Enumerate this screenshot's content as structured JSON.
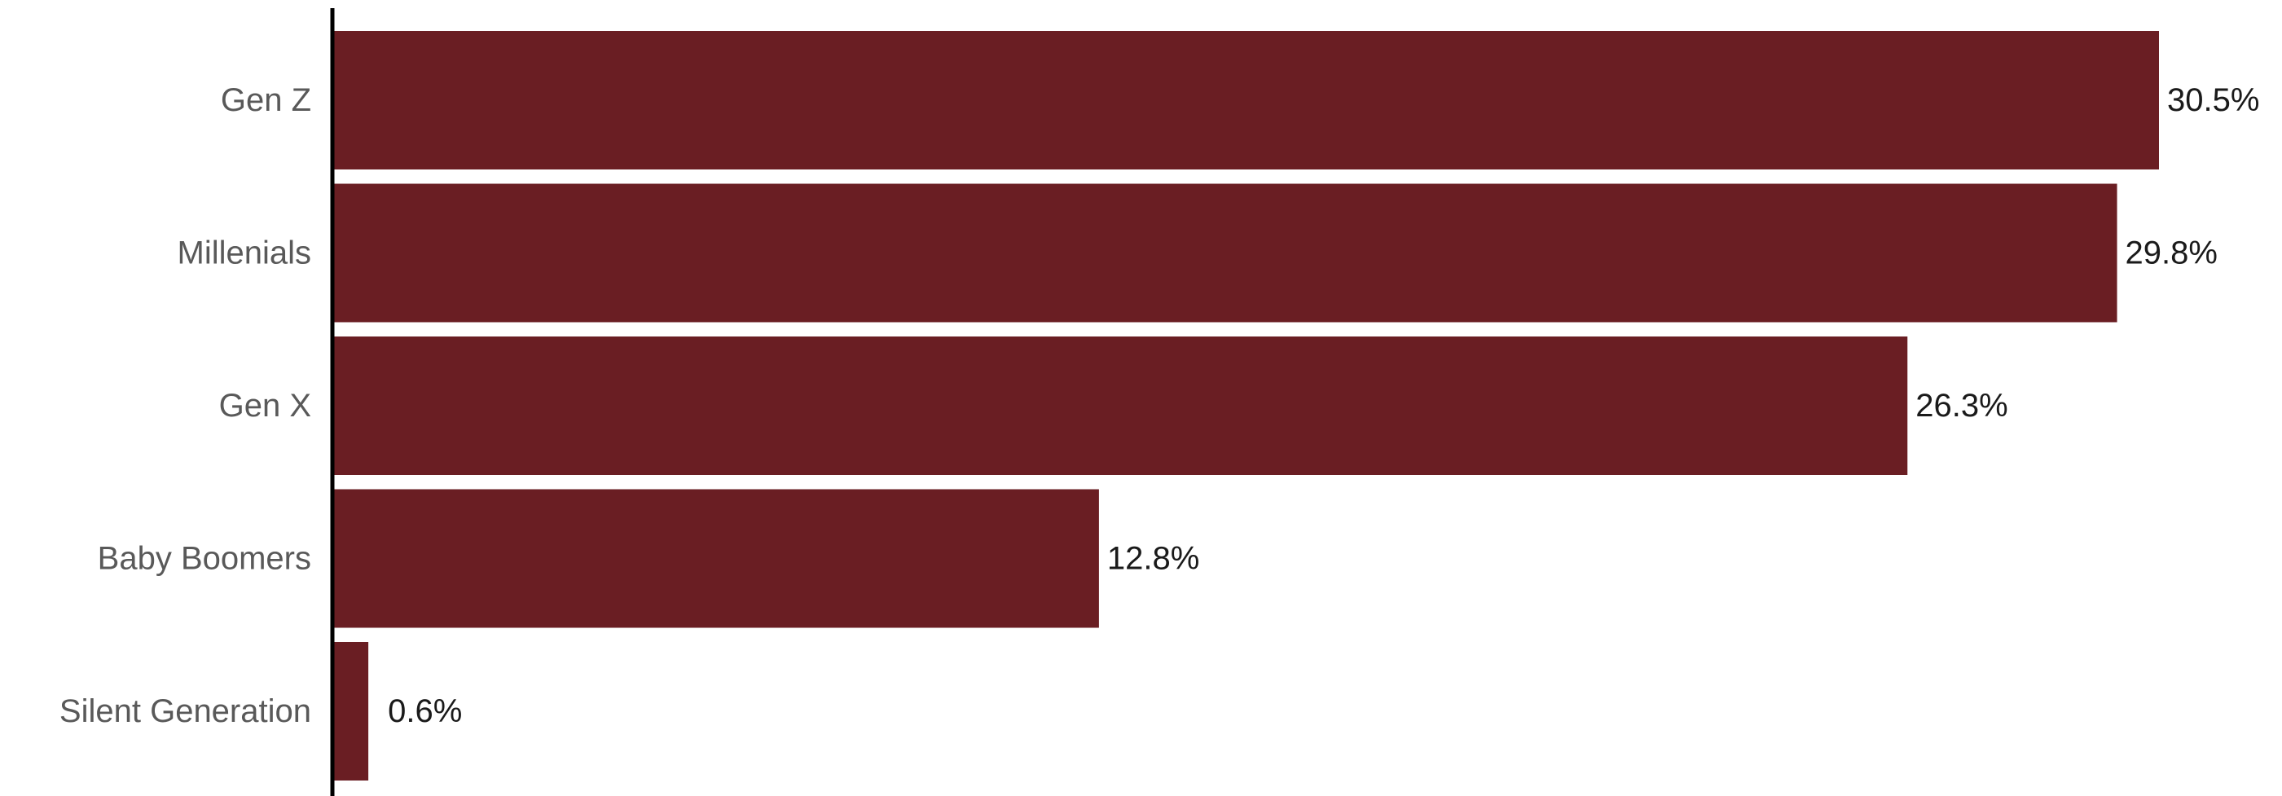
{
  "chart_data": {
    "type": "bar",
    "orientation": "horizontal",
    "categories": [
      "Gen Z",
      "Millenials",
      "Gen X",
      "Baby Boomers",
      "Silent Generation"
    ],
    "values": [
      30.5,
      29.8,
      26.3,
      12.8,
      0.6
    ],
    "value_labels": [
      "30.5%",
      "29.8%",
      "26.3%",
      "12.8%",
      "0.6%"
    ],
    "unit": "%",
    "xlim": [
      0,
      30.5
    ],
    "grid": false,
    "legend": "none"
  },
  "colors": {
    "bar": "#6a1e23",
    "axis": "#000000",
    "category_text": "#595959",
    "value_text": "#1a1a1a",
    "background": "#ffffff"
  }
}
